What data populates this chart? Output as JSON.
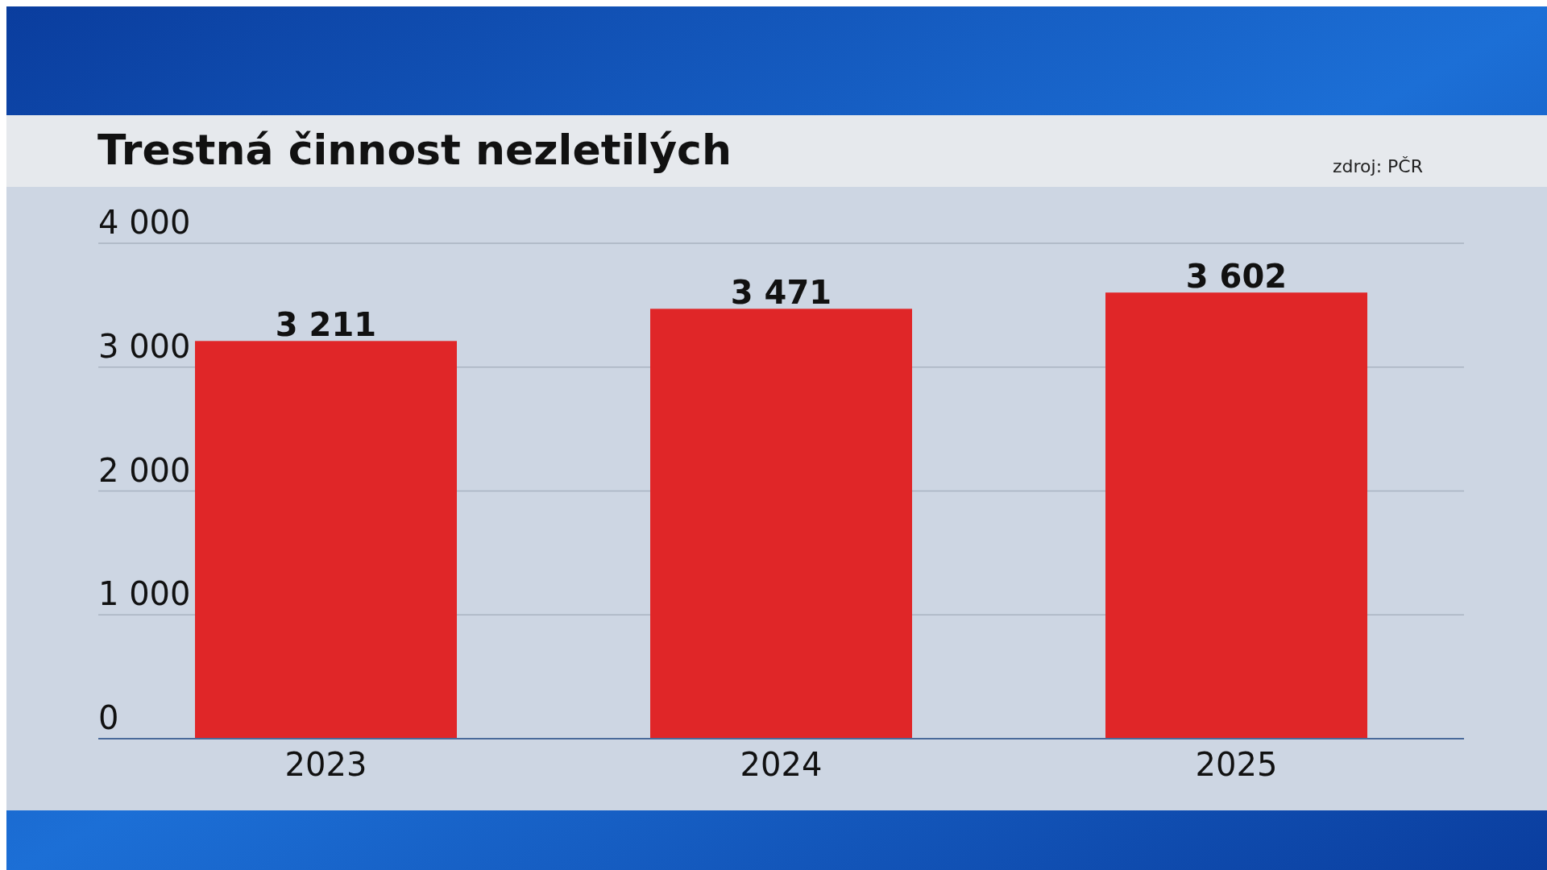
{
  "chart_data": {
    "type": "bar",
    "title": "Trestná činnost nezletilých",
    "annotations": [
      "zdroj: PČR"
    ],
    "categories": [
      "2023",
      "2024",
      "2025"
    ],
    "values": [
      3211,
      3471,
      3602
    ],
    "value_labels": [
      "3 211",
      "3 471",
      "3 602"
    ],
    "color": "#e02628",
    "ylim": [
      0,
      4000
    ],
    "yticks": [
      {
        "value": 0,
        "label": "0"
      },
      {
        "value": 1000,
        "label": "1 000"
      },
      {
        "value": 2000,
        "label": "2 000"
      },
      {
        "value": 3000,
        "label": "3 000"
      },
      {
        "value": 4000,
        "label": "4 000"
      }
    ],
    "grid": "y"
  }
}
